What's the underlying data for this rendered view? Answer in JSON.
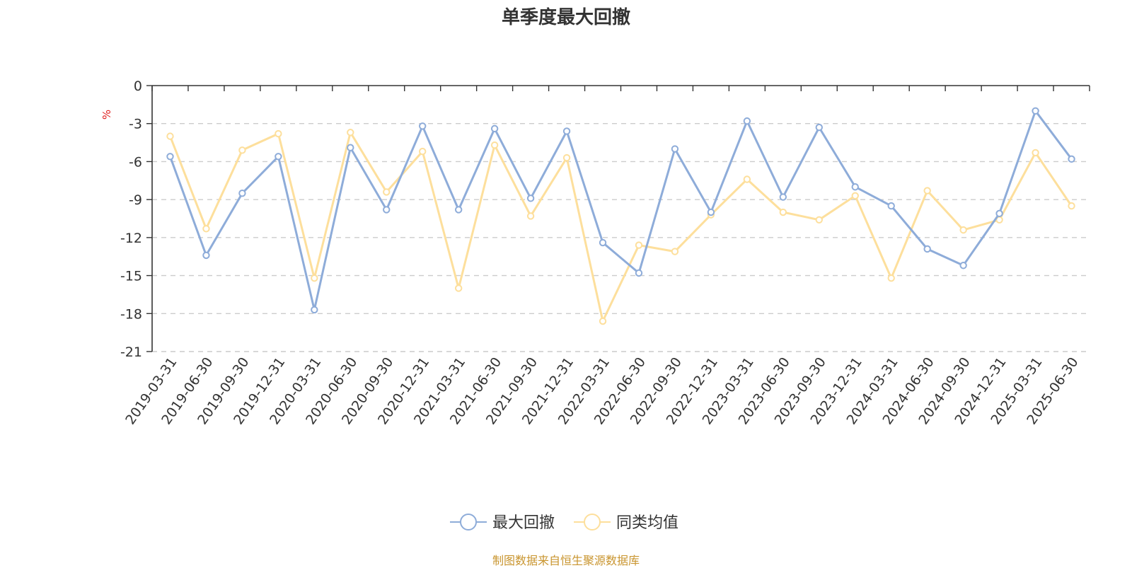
{
  "chart_data": {
    "type": "line",
    "title": "单季度最大回撤",
    "ylabel": "%",
    "ylim": [
      -21,
      0
    ],
    "yticks": [
      0,
      -3,
      -6,
      -9,
      -12,
      -15,
      -18,
      -21
    ],
    "grid": true,
    "legend_position": "bottom-center",
    "categories": [
      "2019-03-31",
      "2019-06-30",
      "2019-09-30",
      "2019-12-31",
      "2020-03-31",
      "2020-06-30",
      "2020-09-30",
      "2020-12-31",
      "2021-03-31",
      "2021-06-30",
      "2021-09-30",
      "2021-12-31",
      "2022-03-31",
      "2022-06-30",
      "2022-09-30",
      "2022-12-31",
      "2023-03-31",
      "2023-06-30",
      "2023-09-30",
      "2023-12-31",
      "2024-03-31",
      "2024-06-30",
      "2024-09-30",
      "2024-12-31",
      "2025-03-31",
      "2025-06-30"
    ],
    "series": [
      {
        "name": "最大回撤",
        "color": "#8eacd9",
        "values": [
          -5.6,
          -13.4,
          -8.5,
          -5.6,
          -17.7,
          -4.9,
          -9.8,
          -3.2,
          -9.8,
          -3.4,
          -8.9,
          -3.6,
          -12.4,
          -14.8,
          -5.0,
          -10.0,
          -2.8,
          -8.8,
          -3.3,
          -8.0,
          -9.5,
          -12.9,
          -14.2,
          -10.1,
          -2.0,
          -5.8
        ]
      },
      {
        "name": "同类均值",
        "color": "#fddf9c",
        "values": [
          -4.0,
          -11.3,
          -5.1,
          -3.8,
          -15.2,
          -3.7,
          -8.4,
          -5.2,
          -16.0,
          -4.7,
          -10.3,
          -5.7,
          -18.6,
          -12.6,
          -13.1,
          -10.2,
          -7.4,
          -10.0,
          -10.6,
          -8.7,
          -15.2,
          -8.3,
          -11.4,
          -10.6,
          -5.3,
          -9.5
        ]
      }
    ]
  },
  "source_note": "制图数据来自恒生聚源数据库"
}
